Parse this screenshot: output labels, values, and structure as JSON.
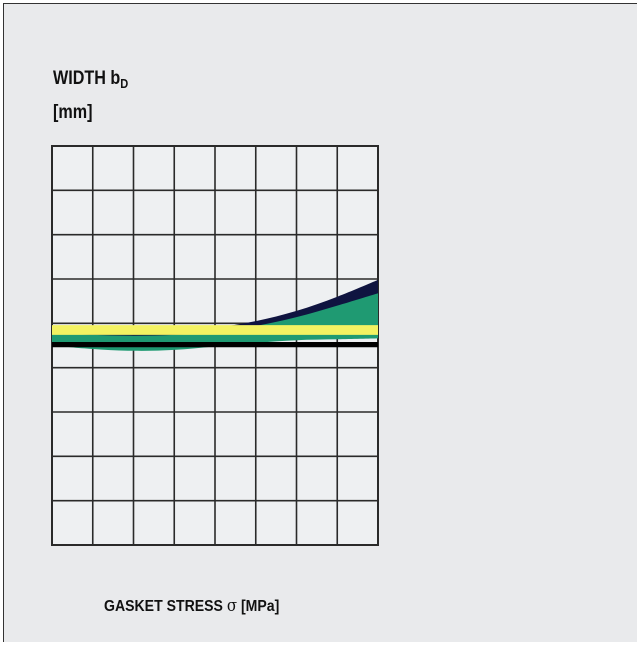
{
  "chart_data": {
    "type": "line",
    "ylabel": "WIDTH b",
    "ylabel_subscript": "D",
    "yunit": "[mm]",
    "xlabel_prefix": "GASKET STRESS ",
    "xlabel_symbol": "σ",
    "xlabel_suffix": " [MPa]",
    "grid": true,
    "xlim": [
      0,
      8
    ],
    "ylim": [
      0,
      9
    ],
    "x_divisions": 8,
    "y_divisions": 9,
    "series": [
      {
        "color": "#0f1440",
        "kind": "band",
        "x": [
          0,
          1,
          2,
          3,
          4,
          5,
          6,
          7,
          8
        ],
        "upper": [
          4.82,
          4.81,
          4.8,
          4.82,
          4.9,
          5.05,
          5.28,
          5.6,
          5.98
        ],
        "lower": [
          4.58,
          4.58,
          4.57,
          4.58,
          4.62,
          4.74,
          4.92,
          5.18,
          5.5
        ]
      },
      {
        "color": "#1f9a72",
        "kind": "band",
        "x": [
          0,
          1,
          2,
          3,
          4,
          5,
          6,
          7,
          8
        ],
        "upper": [
          4.78,
          4.74,
          4.72,
          4.74,
          4.8,
          4.94,
          5.14,
          5.4,
          5.68
        ],
        "lower": [
          4.5,
          4.42,
          4.38,
          4.4,
          4.48,
          4.56,
          4.62,
          4.64,
          4.66
        ]
      },
      {
        "color": "#000000",
        "kind": "band",
        "x": [
          0,
          8
        ],
        "upper": [
          4.58,
          4.58
        ],
        "lower": [
          4.46,
          4.46
        ]
      },
      {
        "color": "#f3f262",
        "kind": "band",
        "x": [
          0,
          8
        ],
        "upper": [
          4.96,
          4.96
        ],
        "lower": [
          4.74,
          4.74
        ]
      }
    ]
  }
}
